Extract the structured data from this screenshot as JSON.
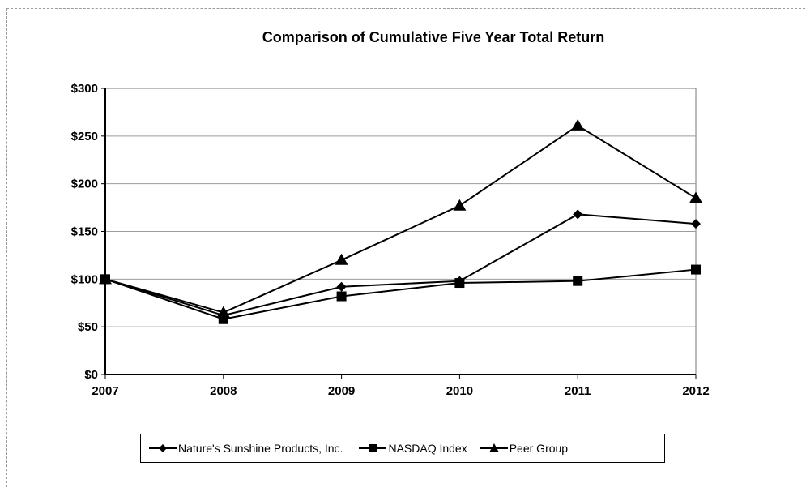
{
  "chart_data": {
    "type": "line",
    "title": "Comparison of Cumulative Five Year Total Return",
    "xlabel": "",
    "ylabel": "",
    "categories": [
      "2007",
      "2008",
      "2009",
      "2010",
      "2011",
      "2012"
    ],
    "y_tick_labels": [
      "$0",
      "$50",
      "$100",
      "$150",
      "$200",
      "$250",
      "$300"
    ],
    "ylim": [
      0,
      300
    ],
    "grid": true,
    "legend_position": "bottom",
    "series": [
      {
        "name": "Nature's Sunshine Products, Inc.",
        "marker": "diamond",
        "values": [
          100,
          62,
          92,
          98,
          168,
          158
        ]
      },
      {
        "name": "NASDAQ Index",
        "marker": "square",
        "values": [
          100,
          58,
          82,
          96,
          98,
          110
        ]
      },
      {
        "name": "Peer Group",
        "marker": "triangle",
        "values": [
          100,
          65,
          120,
          177,
          261,
          185
        ]
      }
    ]
  }
}
